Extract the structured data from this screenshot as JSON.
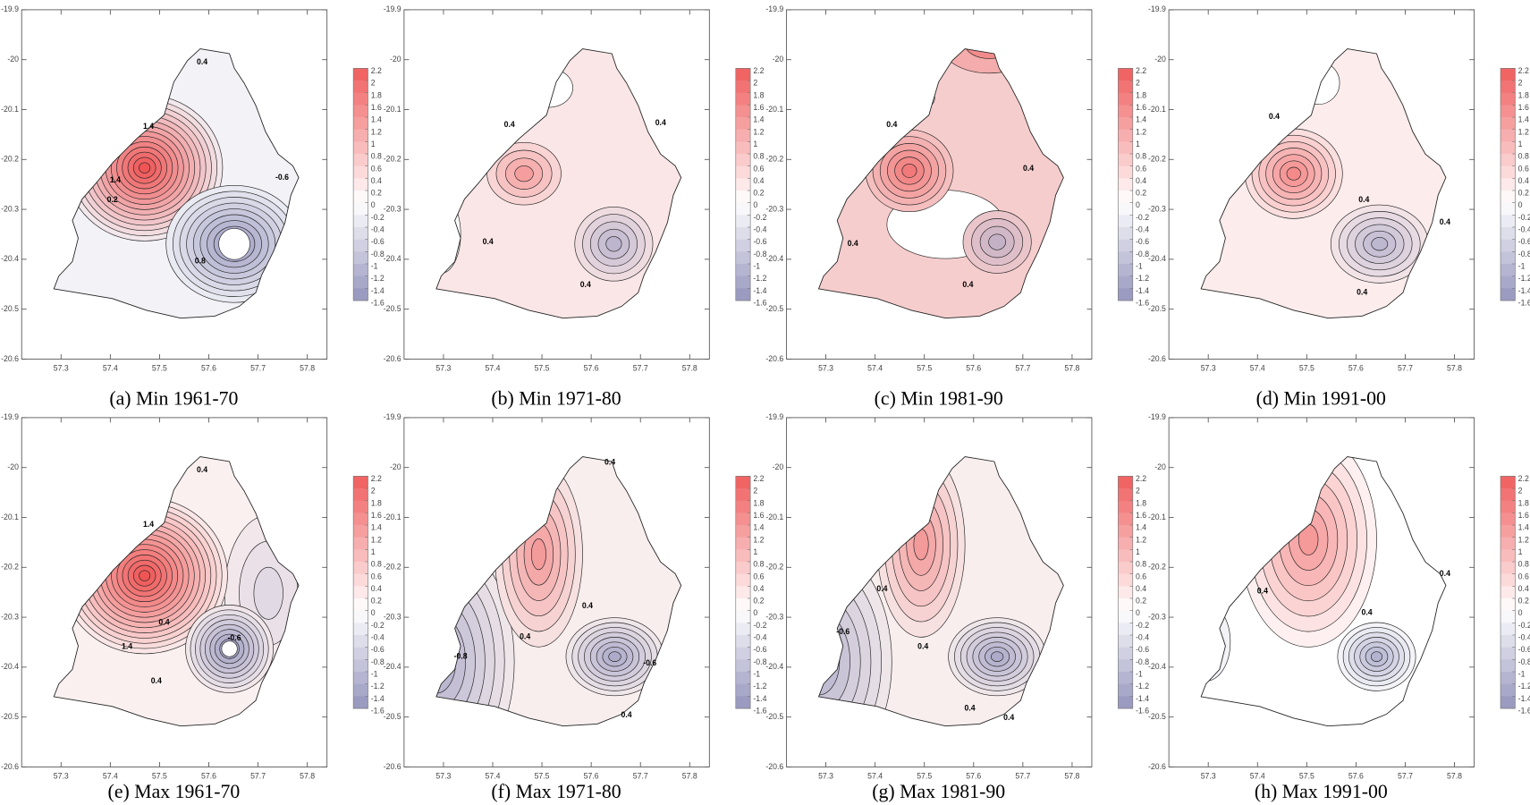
{
  "figure": {
    "xlim": [
      57.22,
      57.84
    ],
    "ylim": [
      -20.6,
      -19.9
    ],
    "xticks": [
      57.3,
      57.4,
      57.5,
      57.6,
      57.7,
      57.8
    ],
    "yticks": [
      -19.9,
      -20,
      -20.1,
      -20.2,
      -20.3,
      -20.4,
      -20.5,
      -20.6
    ],
    "colorbar": {
      "ticks": [
        2.2,
        2,
        1.8,
        1.6,
        1.4,
        1.2,
        1,
        0.8,
        0.6,
        0.4,
        0.2,
        0,
        -0.2,
        -0.4,
        -0.6,
        -0.8,
        -1,
        -1.2,
        -1.4,
        -1.6
      ]
    },
    "panels": [
      {
        "caption": "(a) Min 1961-70",
        "contour_labels": [
          0.4,
          1.4,
          1.4,
          0.2,
          -0.6,
          0.8
        ]
      },
      {
        "caption": "(b) Min 1971-80",
        "contour_labels": [
          0.4,
          0.4,
          0.4,
          0.4
        ]
      },
      {
        "caption": "(c) Min 1981-90",
        "contour_labels": [
          0.4,
          0.4,
          0.4,
          0.4
        ]
      },
      {
        "caption": "(d) Min 1991-00",
        "contour_labels": [
          0.4,
          0.4,
          0.4,
          0.4
        ]
      },
      {
        "caption": "(e) Max 1961-70",
        "contour_labels": [
          0.4,
          1.4,
          1.4,
          0.4,
          -0.6,
          0.4
        ]
      },
      {
        "caption": "(f) Max 1971-80",
        "contour_labels": [
          0.4,
          0.4,
          0.4,
          -0.6,
          -0.8,
          0.4
        ]
      },
      {
        "caption": "(g) Max 1981-90",
        "contour_labels": [
          0.4,
          0.4,
          -0.6,
          0.4,
          0.4
        ]
      },
      {
        "caption": "(h) Max 1991-00",
        "contour_labels": [
          0.4,
          0.4,
          0.4
        ]
      }
    ]
  }
}
